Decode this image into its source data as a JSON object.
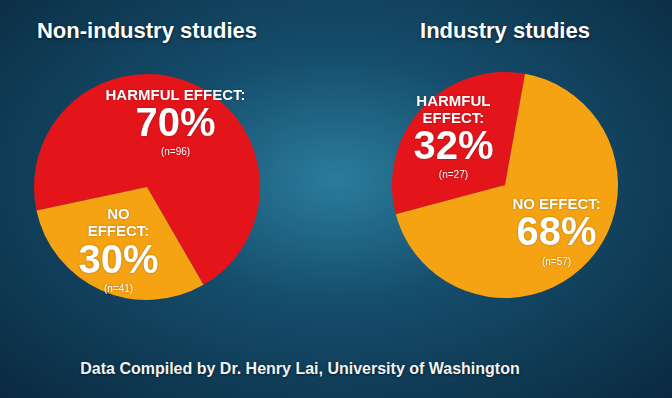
{
  "source": "Data Compiled by Dr. Henry Lai, University of Washington",
  "chart_data": [
    {
      "type": "pie",
      "title": "Non-industry studies",
      "categories": [
        "HARMFUL EFFECT:",
        "NO EFFECT:"
      ],
      "values": [
        70,
        30
      ],
      "value_labels": [
        "70%",
        "30%"
      ],
      "counts": [
        96,
        41
      ],
      "count_labels": [
        "(n=96)",
        "(n=41)"
      ],
      "colors": [
        "#e3151b",
        "#f5a312"
      ],
      "data_labels": true
    },
    {
      "type": "pie",
      "title": "Industry studies",
      "categories": [
        "HARMFUL EFFECT:",
        "NO EFFECT:"
      ],
      "values": [
        32,
        68
      ],
      "value_labels": [
        "32%",
        "68%"
      ],
      "counts": [
        27,
        57
      ],
      "count_labels": [
        "(n=27)",
        "(n=57)"
      ],
      "colors": [
        "#e3151b",
        "#f5a312"
      ],
      "data_labels": true
    }
  ]
}
